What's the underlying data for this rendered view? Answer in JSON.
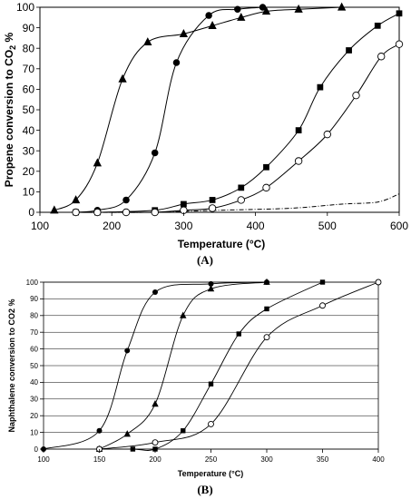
{
  "chart_data": [
    {
      "panel_label": "(A)",
      "type": "line",
      "xlabel": "Temperature (°C)",
      "ylabel_main": "Propene conversion  to CO",
      "ylabel_sub": "2",
      "ylabel_tail": " %",
      "xlim": [
        100,
        600
      ],
      "ylim": [
        0,
        100
      ],
      "xticks": [
        100,
        200,
        300,
        400,
        500,
        600
      ],
      "yticks": [
        0,
        10,
        20,
        30,
        40,
        50,
        60,
        70,
        80,
        90,
        100
      ],
      "grid": false,
      "series": [
        {
          "marker": "triangle",
          "style": "solid",
          "x": [
            120,
            150,
            180,
            215,
            250,
            300,
            340,
            380,
            415,
            460,
            520
          ],
          "y": [
            1,
            6,
            24,
            65,
            83,
            87,
            91,
            95,
            98,
            99,
            100
          ]
        },
        {
          "marker": "filled-circle",
          "style": "solid",
          "x": [
            150,
            180,
            220,
            260,
            290,
            335,
            375,
            410
          ],
          "y": [
            0,
            1,
            6,
            29,
            73,
            96,
            99,
            100
          ]
        },
        {
          "marker": "filled-square",
          "style": "solid",
          "x": [
            150,
            180,
            260,
            300,
            340,
            380,
            415,
            460,
            490,
            530,
            570,
            600
          ],
          "y": [
            0,
            0,
            1,
            4,
            6,
            12,
            22,
            40,
            61,
            79,
            91,
            97
          ]
        },
        {
          "marker": "open-circle",
          "style": "solid",
          "x": [
            150,
            180,
            220,
            260,
            300,
            340,
            380,
            415,
            460,
            500,
            540,
            575,
            600
          ],
          "y": [
            0,
            0,
            0,
            0,
            1,
            2,
            6,
            12,
            25,
            38,
            57,
            76,
            82
          ]
        },
        {
          "marker": "none",
          "style": "dash-dot",
          "x": [
            150,
            250,
            350,
            450,
            520,
            570,
            600
          ],
          "y": [
            0,
            0,
            1,
            2,
            4,
            5,
            9
          ]
        }
      ]
    },
    {
      "panel_label": "(B)",
      "type": "line",
      "xlabel": "Temperature (°C)",
      "ylabel": "Naphthalene conversion to CO2 %",
      "xlim": [
        100,
        400
      ],
      "ylim": [
        0,
        100
      ],
      "xticks": [
        100,
        150,
        200,
        250,
        300,
        350,
        400
      ],
      "yticks": [
        0,
        10,
        20,
        30,
        40,
        50,
        60,
        70,
        80,
        90,
        100
      ],
      "grid": true,
      "series": [
        {
          "marker": "filled-circle",
          "style": "solid",
          "x": [
            100,
            150,
            175,
            200,
            250,
            300
          ],
          "y": [
            0,
            11,
            59,
            94,
            99,
            100
          ]
        },
        {
          "marker": "triangle",
          "style": "solid",
          "x": [
            150,
            175,
            200,
            225,
            250,
            300
          ],
          "y": [
            0,
            9,
            27,
            80,
            96,
            100
          ]
        },
        {
          "marker": "filled-square",
          "style": "solid",
          "x": [
            150,
            180,
            200,
            225,
            250,
            275,
            300,
            350
          ],
          "y": [
            0,
            0,
            0,
            11,
            39,
            69,
            84,
            100
          ]
        },
        {
          "marker": "open-circle",
          "style": "solid",
          "x": [
            150,
            200,
            250,
            300,
            350,
            400
          ],
          "y": [
            0,
            4,
            15,
            67,
            86,
            100
          ]
        }
      ]
    }
  ]
}
